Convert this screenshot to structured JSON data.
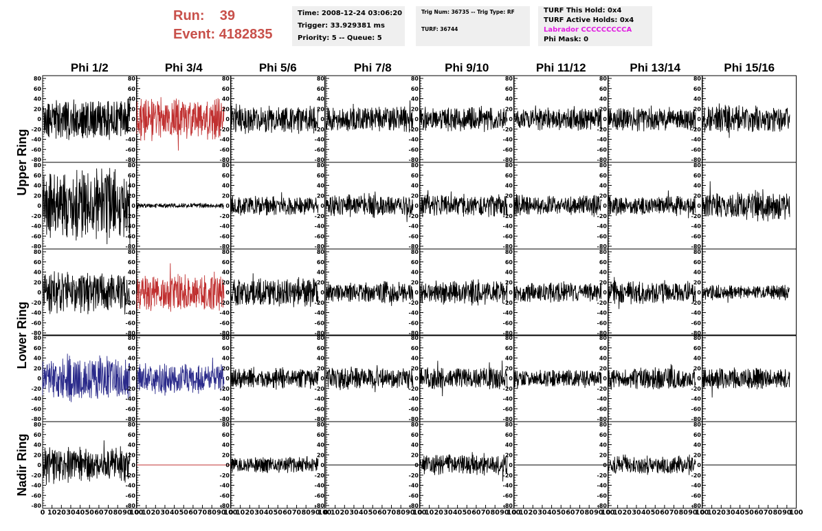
{
  "header": {
    "run_label": "Run:",
    "run_value": "39",
    "event_label": "Event:",
    "event_value": "4182835"
  },
  "info1": {
    "time": "Time: 2008-12-24 03:06:20",
    "trigger": "Trigger: 33.929381 ms",
    "priority": "Priority: 5 -- Queue: 5"
  },
  "info2": {
    "trig": "Trig Num: 36735 -- Trig Type: RF",
    "turf": "TURF: 36744"
  },
  "info3": {
    "this_hold": "TURF This Hold: 0x4",
    "active_holds": "TURF Active Holds: 0x4",
    "labrador": "Labrador CCCCCCCCCA",
    "phi_mask": "Phi Mask: 0"
  },
  "colors": {
    "normal": "#000000",
    "triggered_red": "#c03030",
    "triggered_blue": "#2a2a8a",
    "labrador_magenta": "#e21ee2"
  },
  "chart_data": {
    "type": "line",
    "columns": [
      "Phi 1/2",
      "Phi 3/4",
      "Phi 5/6",
      "Phi 7/8",
      "Phi 9/10",
      "Phi 11/12",
      "Phi 13/14",
      "Phi 15/16"
    ],
    "row_groups": [
      {
        "label": "Upper Ring",
        "rows": [
          0,
          1
        ]
      },
      {
        "label": "Lower Ring",
        "rows": [
          2,
          3
        ]
      },
      {
        "label": "Nadir Ring",
        "rows": [
          4
        ]
      }
    ],
    "ylim": [
      -80,
      80
    ],
    "y_ticks": [
      -80,
      -60,
      -40,
      -20,
      0,
      20,
      40,
      60,
      80
    ],
    "xlim": [
      0,
      100
    ],
    "x_ticks": [
      0,
      10,
      20,
      30,
      40,
      50,
      60,
      70,
      80,
      90,
      100
    ],
    "grid": false,
    "approx_samples": 260,
    "waveforms": [
      [
        {
          "amp": 25,
          "color": "normal",
          "seed": 11,
          "range": [
            0,
            93
          ]
        },
        {
          "amp": 26,
          "color": "red",
          "seed": 12,
          "range": [
            0,
            93
          ]
        },
        {
          "amp": 18,
          "color": "normal",
          "seed": 13,
          "range": [
            0,
            93
          ]
        },
        {
          "amp": 16,
          "color": "normal",
          "seed": 14,
          "range": [
            0,
            93
          ]
        },
        {
          "amp": 15,
          "color": "normal",
          "seed": 15,
          "range": [
            0,
            93
          ]
        },
        {
          "amp": 15,
          "color": "normal",
          "seed": 16,
          "range": [
            0,
            93
          ]
        },
        {
          "amp": 16,
          "color": "normal",
          "seed": 17,
          "range": [
            0,
            93
          ]
        },
        {
          "amp": 18,
          "color": "normal",
          "seed": 18,
          "range": [
            0,
            93
          ]
        }
      ],
      [
        {
          "amp": 45,
          "color": "normal",
          "seed": 21,
          "range": [
            0,
            93
          ]
        },
        {
          "amp": 3,
          "color": "normal",
          "seed": 22,
          "range": [
            0,
            93
          ]
        },
        {
          "amp": 12,
          "color": "normal",
          "seed": 23,
          "range": [
            0,
            93
          ]
        },
        {
          "amp": 14,
          "color": "normal",
          "seed": 24,
          "range": [
            0,
            93
          ]
        },
        {
          "amp": 14,
          "color": "normal",
          "seed": 25,
          "range": [
            0,
            93
          ]
        },
        {
          "amp": 13,
          "color": "normal",
          "seed": 26,
          "range": [
            0,
            93
          ]
        },
        {
          "amp": 12,
          "color": "normal",
          "seed": 27,
          "range": [
            0,
            93
          ]
        },
        {
          "amp": 19,
          "color": "normal",
          "seed": 28,
          "range": [
            0,
            93
          ]
        }
      ],
      [
        {
          "amp": 26,
          "color": "normal",
          "seed": 31,
          "range": [
            0,
            93
          ]
        },
        {
          "amp": 23,
          "color": "red",
          "seed": 32,
          "range": [
            0,
            93
          ]
        },
        {
          "amp": 18,
          "color": "normal",
          "seed": 33,
          "range": [
            0,
            93
          ]
        },
        {
          "amp": 13,
          "color": "normal",
          "seed": 34,
          "range": [
            0,
            93
          ]
        },
        {
          "amp": 15,
          "color": "normal",
          "seed": 35,
          "range": [
            0,
            93
          ]
        },
        {
          "amp": 13,
          "color": "normal",
          "seed": 36,
          "range": [
            0,
            93
          ]
        },
        {
          "amp": 14,
          "color": "normal",
          "seed": 37,
          "range": [
            0,
            93
          ]
        },
        {
          "amp": 9,
          "color": "normal",
          "seed": 38,
          "range": [
            0,
            93
          ]
        }
      ],
      [
        {
          "amp": 28,
          "color": "blue",
          "seed": 41,
          "range": [
            0,
            93
          ]
        },
        {
          "amp": 20,
          "color": "blue",
          "seed": 42,
          "range": [
            0,
            93
          ]
        },
        {
          "amp": 13,
          "color": "normal",
          "seed": 43,
          "range": [
            0,
            93
          ]
        },
        {
          "amp": 14,
          "color": "normal",
          "seed": 44,
          "range": [
            0,
            93
          ]
        },
        {
          "amp": 14,
          "color": "normal",
          "seed": 45,
          "range": [
            0,
            93
          ]
        },
        {
          "amp": 11,
          "color": "normal",
          "seed": 46,
          "range": [
            0,
            93
          ]
        },
        {
          "amp": 14,
          "color": "normal",
          "seed": 47,
          "range": [
            0,
            93
          ]
        },
        {
          "amp": 14,
          "color": "normal",
          "seed": 48,
          "range": [
            0,
            93
          ]
        }
      ],
      [
        {
          "amp": 22,
          "color": "normal",
          "seed": 51,
          "range": [
            0,
            93
          ]
        },
        {
          "amp": 0,
          "color": "red",
          "seed": 52,
          "range": [
            0,
            100
          ]
        },
        {
          "amp": 10,
          "color": "normal",
          "seed": 53,
          "range": [
            0,
            93
          ]
        },
        {
          "amp": 0,
          "color": "normal",
          "seed": 54,
          "range": [
            0,
            100
          ]
        },
        {
          "amp": 13,
          "color": "normal",
          "seed": 55,
          "range": [
            0,
            93
          ]
        },
        {
          "amp": 0,
          "color": "normal",
          "seed": 56,
          "range": [
            0,
            100
          ]
        },
        {
          "amp": 12,
          "color": "normal",
          "seed": 57,
          "range": [
            0,
            93
          ]
        },
        {
          "amp": 0,
          "color": "normal",
          "seed": 58,
          "range": [
            0,
            100
          ]
        }
      ]
    ]
  }
}
